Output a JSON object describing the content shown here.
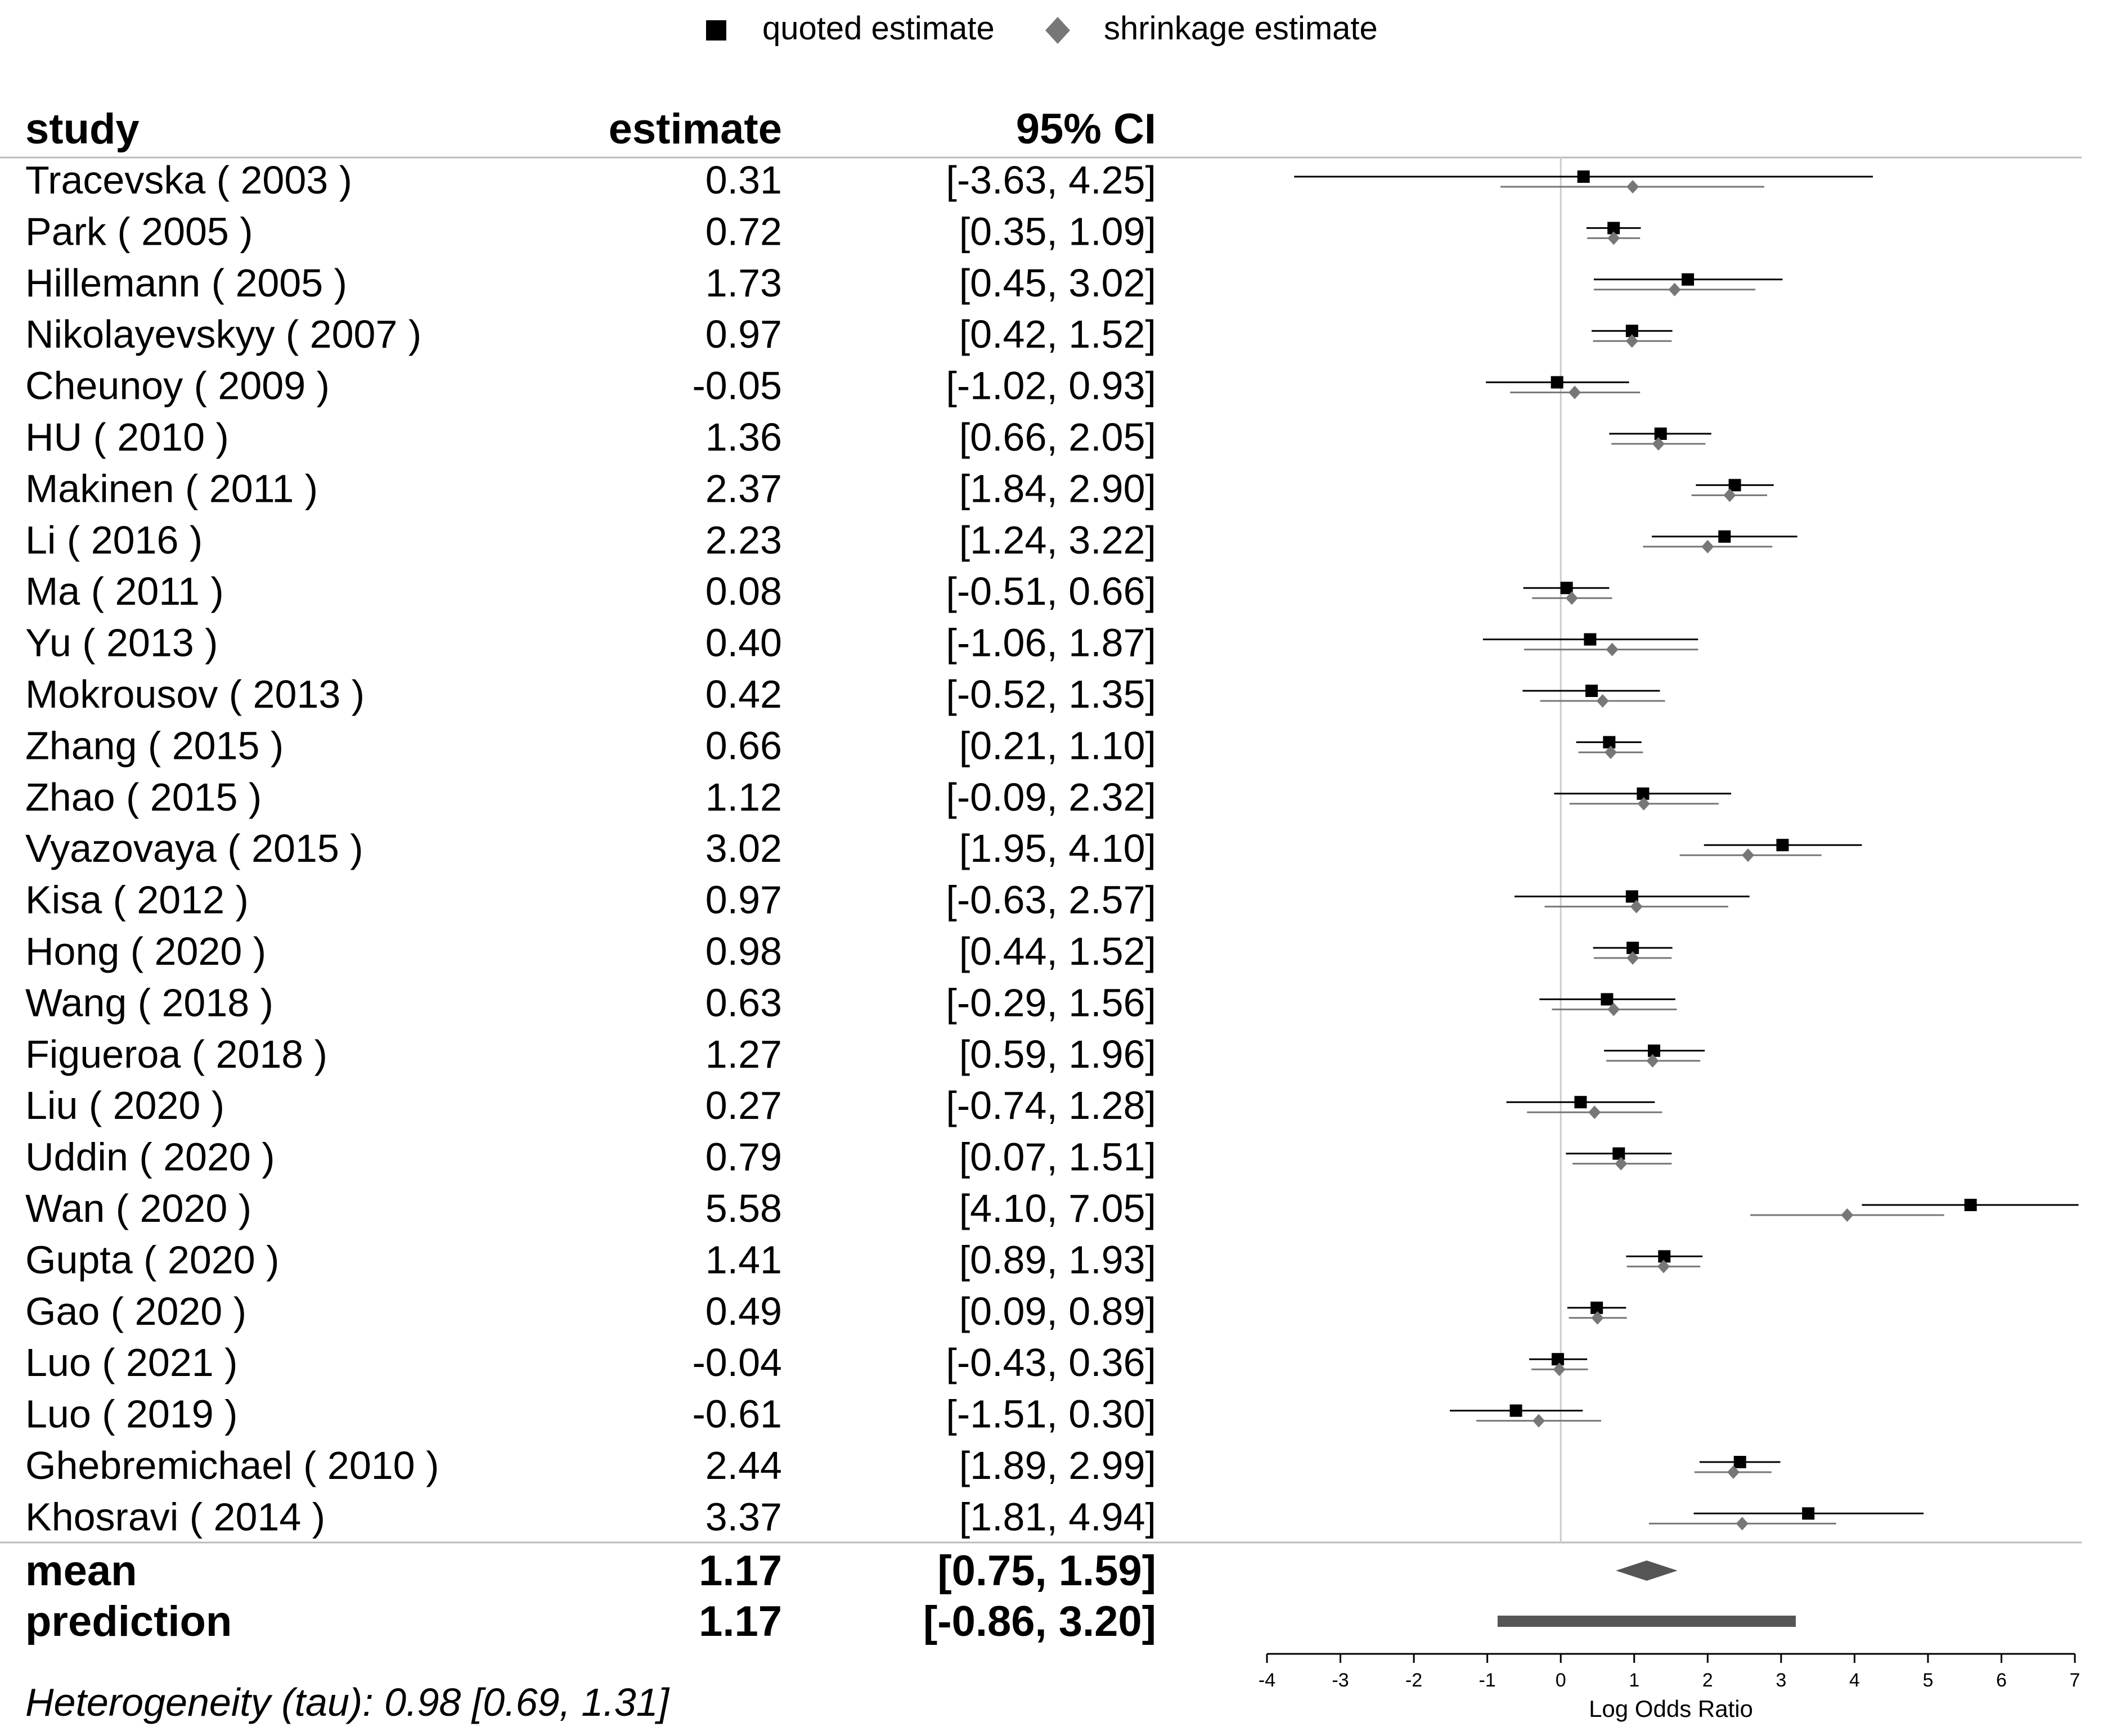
{
  "chart_data": {
    "type": "forest",
    "legend": {
      "placement": "top-center",
      "items": [
        {
          "label": "quoted estimate",
          "marker": "square",
          "color": "#000000"
        },
        {
          "label": "shrinkage estimate",
          "marker": "diamond",
          "color": "#777777"
        }
      ]
    },
    "columns": {
      "study": "study",
      "estimate": "estimate",
      "ci": "95% CI"
    },
    "studies": [
      {
        "label": "Tracevska ( 2003 )",
        "estimate_text": "0.31",
        "ci_text": "[-3.63, 4.25]",
        "est": 0.31,
        "lo": -3.63,
        "hi": 4.25,
        "sh_est": 0.98,
        "sh_lo": -0.82,
        "sh_hi": 2.77
      },
      {
        "label": "Park ( 2005 )",
        "estimate_text": "0.72",
        "ci_text": "[0.35, 1.09]",
        "est": 0.72,
        "lo": 0.35,
        "hi": 1.09,
        "sh_est": 0.72,
        "sh_lo": 0.36,
        "sh_hi": 1.08
      },
      {
        "label": "Hillemann ( 2005 )",
        "estimate_text": "1.73",
        "ci_text": "[0.45, 3.02]",
        "est": 1.73,
        "lo": 0.45,
        "hi": 3.02,
        "sh_est": 1.55,
        "sh_lo": 0.45,
        "sh_hi": 2.65
      },
      {
        "label": "Nikolayevskyy ( 2007 )",
        "estimate_text": "0.97",
        "ci_text": "[0.42, 1.52]",
        "est": 0.97,
        "lo": 0.42,
        "hi": 1.52,
        "sh_est": 0.97,
        "sh_lo": 0.44,
        "sh_hi": 1.51
      },
      {
        "label": "Cheunoy ( 2009 )",
        "estimate_text": "-0.05",
        "ci_text": "[-1.02, 0.93]",
        "est": -0.05,
        "lo": -1.02,
        "hi": 0.93,
        "sh_est": 0.19,
        "sh_lo": -0.69,
        "sh_hi": 1.08
      },
      {
        "label": "HU ( 2010 )",
        "estimate_text": "1.36",
        "ci_text": "[0.66, 2.05]",
        "est": 1.36,
        "lo": 0.66,
        "hi": 2.05,
        "sh_est": 1.33,
        "sh_lo": 0.69,
        "sh_hi": 1.97
      },
      {
        "label": "Makinen ( 2011 )",
        "estimate_text": "2.37",
        "ci_text": "[1.84, 2.90]",
        "est": 2.37,
        "lo": 1.84,
        "hi": 2.9,
        "sh_est": 2.3,
        "sh_lo": 1.78,
        "sh_hi": 2.81
      },
      {
        "label": "Li ( 2016 )",
        "estimate_text": "2.23",
        "ci_text": "[1.24, 3.22]",
        "est": 2.23,
        "lo": 1.24,
        "hi": 3.22,
        "sh_est": 2.0,
        "sh_lo": 1.12,
        "sh_hi": 2.88
      },
      {
        "label": "Ma ( 2011 )",
        "estimate_text": "0.08",
        "ci_text": "[-0.51, 0.66]",
        "est": 0.08,
        "lo": -0.51,
        "hi": 0.66,
        "sh_est": 0.15,
        "sh_lo": -0.39,
        "sh_hi": 0.7
      },
      {
        "label": "Yu ( 2013 )",
        "estimate_text": "0.40",
        "ci_text": "[-1.06, 1.87]",
        "est": 0.4,
        "lo": -1.06,
        "hi": 1.87,
        "sh_est": 0.7,
        "sh_lo": -0.5,
        "sh_hi": 1.87
      },
      {
        "label": "Mokrousov ( 2013 )",
        "estimate_text": "0.42",
        "ci_text": "[-0.52, 1.35]",
        "est": 0.42,
        "lo": -0.52,
        "hi": 1.35,
        "sh_est": 0.57,
        "sh_lo": -0.28,
        "sh_hi": 1.42
      },
      {
        "label": "Zhang ( 2015 )",
        "estimate_text": "0.66",
        "ci_text": "[0.21, 1.10]",
        "est": 0.66,
        "lo": 0.21,
        "hi": 1.1,
        "sh_est": 0.68,
        "sh_lo": 0.24,
        "sh_hi": 1.12
      },
      {
        "label": "Zhao ( 2015 )",
        "estimate_text": "1.12",
        "ci_text": "[-0.09, 2.32]",
        "est": 1.12,
        "lo": -0.09,
        "hi": 2.32,
        "sh_est": 1.13,
        "sh_lo": 0.12,
        "sh_hi": 2.15
      },
      {
        "label": "Vyazovaya ( 2015 )",
        "estimate_text": "3.02",
        "ci_text": "[1.95, 4.10]",
        "est": 3.02,
        "lo": 1.95,
        "hi": 4.1,
        "sh_est": 2.55,
        "sh_lo": 1.62,
        "sh_hi": 3.55
      },
      {
        "label": "Kisa ( 2012 )",
        "estimate_text": "0.97",
        "ci_text": "[-0.63, 2.57]",
        "est": 0.97,
        "lo": -0.63,
        "hi": 2.57,
        "sh_est": 1.03,
        "sh_lo": -0.22,
        "sh_hi": 2.28
      },
      {
        "label": "Hong ( 2020 )",
        "estimate_text": "0.98",
        "ci_text": "[0.44, 1.52]",
        "est": 0.98,
        "lo": 0.44,
        "hi": 1.52,
        "sh_est": 0.98,
        "sh_lo": 0.45,
        "sh_hi": 1.51
      },
      {
        "label": "Wang ( 2018 )",
        "estimate_text": "0.63",
        "ci_text": "[-0.29, 1.56]",
        "est": 0.63,
        "lo": -0.29,
        "hi": 1.56,
        "sh_est": 0.72,
        "sh_lo": -0.12,
        "sh_hi": 1.58
      },
      {
        "label": "Figueroa ( 2018 )",
        "estimate_text": "1.27",
        "ci_text": "[0.59, 1.96]",
        "est": 1.27,
        "lo": 0.59,
        "hi": 1.96,
        "sh_est": 1.25,
        "sh_lo": 0.62,
        "sh_hi": 1.9
      },
      {
        "label": "Liu ( 2020 )",
        "estimate_text": "0.27",
        "ci_text": "[-0.74, 1.28]",
        "est": 0.27,
        "lo": -0.74,
        "hi": 1.28,
        "sh_est": 0.46,
        "sh_lo": -0.46,
        "sh_hi": 1.38
      },
      {
        "label": "Uddin ( 2020 )",
        "estimate_text": "0.79",
        "ci_text": "[0.07, 1.51]",
        "est": 0.79,
        "lo": 0.07,
        "hi": 1.51,
        "sh_est": 0.82,
        "sh_lo": 0.16,
        "sh_hi": 1.51
      },
      {
        "label": "Wan ( 2020 )",
        "estimate_text": "5.58",
        "ci_text": "[4.10, 7.05]",
        "est": 5.58,
        "lo": 4.1,
        "hi": 7.05,
        "sh_est": 3.9,
        "sh_lo": 2.58,
        "sh_hi": 5.22
      },
      {
        "label": "Gupta ( 2020 )",
        "estimate_text": "1.41",
        "ci_text": "[0.89, 1.93]",
        "est": 1.41,
        "lo": 0.89,
        "hi": 1.93,
        "sh_est": 1.4,
        "sh_lo": 0.9,
        "sh_hi": 1.9
      },
      {
        "label": "Gao ( 2020 )",
        "estimate_text": "0.49",
        "ci_text": "[0.09, 0.89]",
        "est": 0.49,
        "lo": 0.09,
        "hi": 0.89,
        "sh_est": 0.5,
        "sh_lo": 0.11,
        "sh_hi": 0.9
      },
      {
        "label": "Luo ( 2021 )",
        "estimate_text": "-0.04",
        "ci_text": "[-0.43, 0.36]",
        "est": -0.04,
        "lo": -0.43,
        "hi": 0.36,
        "sh_est": -0.02,
        "sh_lo": -0.4,
        "sh_hi": 0.37
      },
      {
        "label": "Luo ( 2019 )",
        "estimate_text": "-0.61",
        "ci_text": "[-1.51, 0.30]",
        "est": -0.61,
        "lo": -1.51,
        "hi": 0.3,
        "sh_est": -0.3,
        "sh_lo": -1.15,
        "sh_hi": 0.55
      },
      {
        "label": "Ghebremichael ( 2010 )",
        "estimate_text": "2.44",
        "ci_text": "[1.89, 2.99]",
        "est": 2.44,
        "lo": 1.89,
        "hi": 2.99,
        "sh_est": 2.35,
        "sh_lo": 1.82,
        "sh_hi": 2.87
      },
      {
        "label": "Khosravi ( 2014 )",
        "estimate_text": "3.37",
        "ci_text": "[1.81, 4.94]",
        "est": 3.37,
        "lo": 1.81,
        "hi": 4.94,
        "sh_est": 2.47,
        "sh_lo": 1.2,
        "sh_hi": 3.75
      }
    ],
    "mean": {
      "label": "mean",
      "estimate_text": "1.17",
      "ci_text": "[0.75, 1.59]",
      "est": 1.17,
      "lo": 0.75,
      "hi": 1.59
    },
    "prediction": {
      "label": "prediction",
      "estimate_text": "1.17",
      "ci_text": "[-0.86, 3.20]",
      "est": 1.17,
      "lo": -0.86,
      "hi": 3.2
    },
    "heterogeneity": "Heterogeneity (tau): 0.98 [0.69, 1.31]",
    "xlabel": "Log Odds Ratio",
    "xlim": [
      -4,
      7
    ],
    "xticks": [
      -4,
      -3,
      -2,
      -1,
      0,
      1,
      2,
      3,
      4,
      5,
      6,
      7
    ],
    "reference_line": 0
  }
}
